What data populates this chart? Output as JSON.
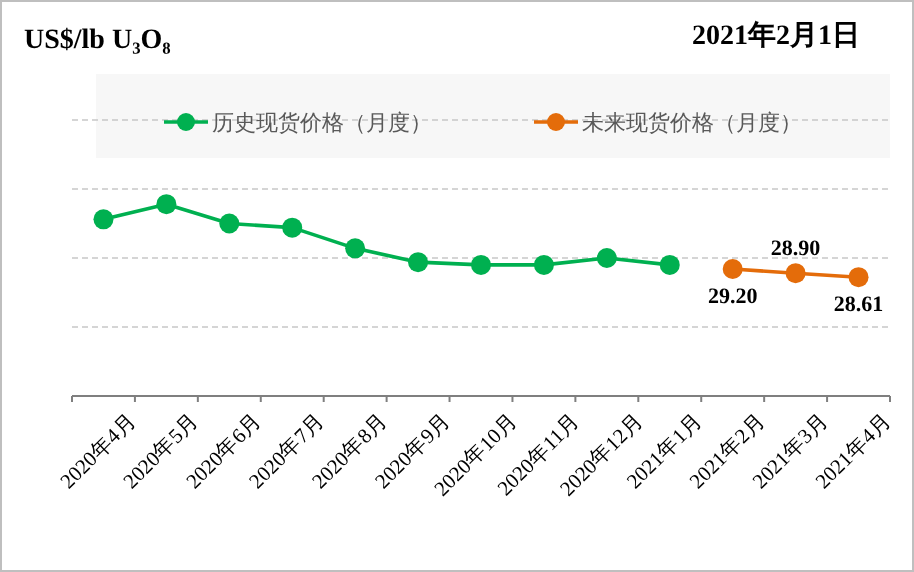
{
  "chart_data": {
    "type": "line",
    "title": "US$/lb U₃O₈",
    "subtitle": "2021年2月1日",
    "categories": [
      "2020年4月",
      "2020年5月",
      "2020年6月",
      "2020年7月",
      "2020年8月",
      "2020年9月",
      "2020年10月",
      "2020年11月",
      "2020年12月",
      "2021年1月",
      "2021年2月",
      "2021年3月",
      "2021年4月"
    ],
    "ylim": [
      20,
      40
    ],
    "yticks": [
      {
        "value": 25,
        "label": null
      },
      {
        "value": 30,
        "label": null
      },
      {
        "value": 35,
        "label": null
      },
      {
        "value": 40,
        "label": null
      }
    ],
    "tick_labels": "x",
    "grid": "y",
    "legend": "top",
    "marker": "circle",
    "series": [
      {
        "name": "历史现货价格（月度）",
        "color": "#00b050",
        "values": [
          32.8,
          33.9,
          32.5,
          32.2,
          30.7,
          29.7,
          29.5,
          29.5,
          30.0,
          29.5,
          null,
          null,
          null
        ]
      },
      {
        "name": "未来现货价格（月度）",
        "color": "#e46c0a",
        "values": [
          null,
          null,
          null,
          null,
          null,
          null,
          null,
          null,
          null,
          null,
          29.2,
          28.9,
          28.61
        ],
        "value_labels": [
          null,
          null,
          null,
          null,
          null,
          null,
          null,
          null,
          null,
          null,
          "29.20",
          "28.90",
          "28.61"
        ]
      }
    ]
  }
}
